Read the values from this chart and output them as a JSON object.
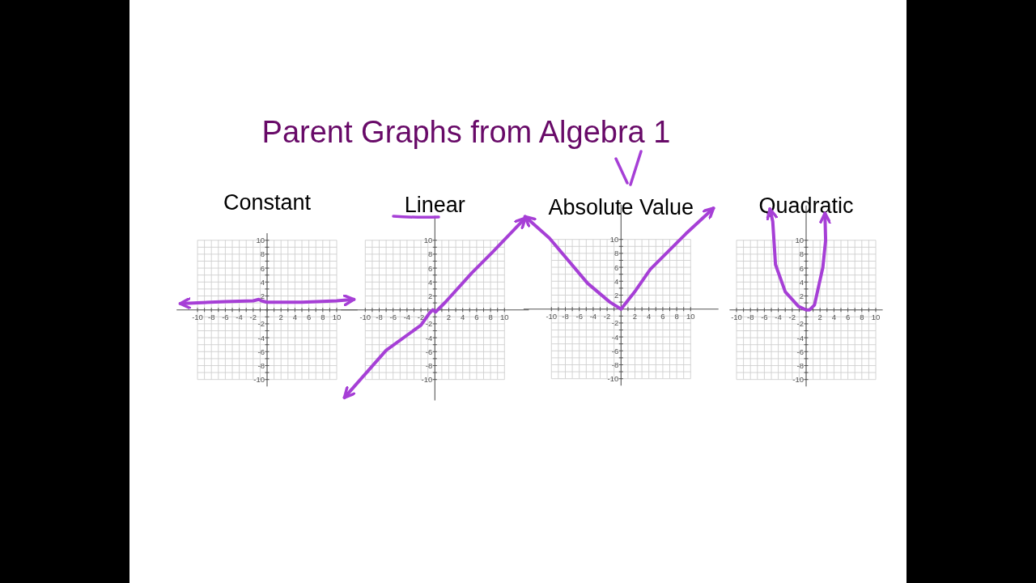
{
  "chart_data": [
    {
      "type": "other",
      "title": "Parent Graphs from Algebra 1"
    },
    {
      "type": "line",
      "title": "Constant",
      "color": "#a63fd6",
      "grid": true,
      "xlim": [
        -13,
        13
      ],
      "ylim": [
        -11,
        11
      ],
      "xticks": [
        -10,
        {
          "value": -9,
          "label": null
        },
        -8,
        {
          "value": -7,
          "label": null
        },
        -6,
        {
          "value": -5,
          "label": null
        },
        -4,
        {
          "value": -3,
          "label": null
        },
        -2,
        {
          "value": -1,
          "label": null
        },
        {
          "value": 0,
          "label": null
        },
        {
          "value": 1,
          "label": null
        },
        2,
        {
          "value": 3,
          "label": null
        },
        4,
        {
          "value": 5,
          "label": null
        },
        6,
        {
          "value": 7,
          "label": null
        },
        8,
        {
          "value": 9,
          "label": null
        },
        10
      ],
      "yticks": [
        -10,
        {
          "value": -9,
          "label": null
        },
        -8,
        {
          "value": -7,
          "label": null
        },
        -6,
        {
          "value": -5,
          "label": null
        },
        -4,
        {
          "value": -3,
          "label": null
        },
        -2,
        {
          "value": -1,
          "label": null
        },
        {
          "value": 0,
          "label": null
        },
        {
          "value": 1,
          "label": null
        },
        2,
        {
          "value": 3,
          "label": null
        },
        4,
        {
          "value": 5,
          "label": null
        },
        6,
        {
          "value": 7,
          "label": null
        },
        8,
        {
          "value": 9,
          "label": null
        },
        10
      ],
      "x": [
        -12.5,
        -10,
        -6,
        -2,
        -1.2,
        -0.8,
        0,
        5,
        10,
        12.5
      ],
      "values": [
        0.9,
        1,
        1.2,
        1.3,
        1.5,
        1.3,
        1.1,
        1.1,
        1.3,
        1.5
      ]
    },
    {
      "type": "line",
      "title": "Linear",
      "color": "#a63fd6",
      "grid": true,
      "xlim": [
        -13.5,
        13.5
      ],
      "ylim": [
        -13,
        13.5
      ],
      "xticks": [
        -10,
        {
          "value": -9,
          "label": null
        },
        -8,
        {
          "value": -7,
          "label": null
        },
        -6,
        {
          "value": -5,
          "label": null
        },
        -4,
        {
          "value": -3,
          "label": null
        },
        -2,
        {
          "value": -1,
          "label": null
        },
        {
          "value": 0,
          "label": null
        },
        {
          "value": 1,
          "label": null
        },
        2,
        {
          "value": 3,
          "label": null
        },
        4,
        {
          "value": 5,
          "label": null
        },
        6,
        {
          "value": 7,
          "label": null
        },
        8,
        {
          "value": 9,
          "label": null
        },
        10
      ],
      "yticks": [
        -10,
        {
          "value": -9,
          "label": null
        },
        -8,
        {
          "value": -7,
          "label": null
        },
        -6,
        {
          "value": -5,
          "label": null
        },
        -4,
        {
          "value": -3,
          "label": null
        },
        -2,
        {
          "value": -1,
          "label": null
        },
        {
          "value": 0,
          "label": null
        },
        {
          "value": 1,
          "label": null
        },
        2,
        {
          "value": 3,
          "label": null
        },
        4,
        {
          "value": 5,
          "label": null
        },
        6,
        {
          "value": 7,
          "label": null
        },
        8,
        {
          "value": 9,
          "label": null
        },
        10
      ],
      "x": [
        -13,
        -7,
        -2,
        -0.8,
        -0.3,
        0.1,
        1.5,
        5.3,
        8.4,
        13
      ],
      "values": [
        -12.6,
        -5.8,
        -2.2,
        -0.5,
        0,
        -0.3,
        1.1,
        5.3,
        8.4,
        13.2
      ]
    },
    {
      "type": "line",
      "title": "Absolute Value",
      "color": "#a63fd6",
      "grid": true,
      "xlim": [
        -14,
        14
      ],
      "ylim": [
        -11,
        15
      ],
      "xticks": [
        -10,
        {
          "value": -9,
          "label": null
        },
        -8,
        {
          "value": -7,
          "label": null
        },
        -6,
        {
          "value": -5,
          "label": null
        },
        -4,
        {
          "value": -3,
          "label": null
        },
        -2,
        {
          "value": -1,
          "label": null
        },
        {
          "value": 0,
          "label": null
        },
        {
          "value": 1,
          "label": null
        },
        2,
        {
          "value": 3,
          "label": null
        },
        4,
        {
          "value": 5,
          "label": null
        },
        6,
        {
          "value": 7,
          "label": null
        },
        8,
        {
          "value": 9,
          "label": null
        },
        10
      ],
      "yticks": [
        -10,
        {
          "value": -9,
          "label": null
        },
        -8,
        {
          "value": -7,
          "label": null
        },
        -6,
        {
          "value": -5,
          "label": null
        },
        -4,
        {
          "value": -3,
          "label": null
        },
        -2,
        {
          "value": -1,
          "label": null
        },
        {
          "value": 0,
          "label": null
        },
        {
          "value": 1,
          "label": null
        },
        2,
        {
          "value": 3,
          "label": null
        },
        4,
        {
          "value": 5,
          "label": null
        },
        6,
        {
          "value": 7,
          "label": null
        },
        8,
        {
          "value": 9,
          "label": null
        },
        10
      ],
      "x": [
        -13.8,
        -10.3,
        -4.8,
        -1.6,
        0,
        1.9,
        4.2,
        9.3,
        13.3
      ],
      "values": [
        13.3,
        10.2,
        3.7,
        1,
        0,
        2.4,
        5.7,
        10.8,
        14.5
      ]
    },
    {
      "type": "line",
      "title": "Quadratic",
      "color": "#a63fd6",
      "grid": true,
      "xlim": [
        -11,
        11
      ],
      "ylim": [
        -11,
        15
      ],
      "xticks": [
        -10,
        {
          "value": -9,
          "label": null
        },
        -8,
        {
          "value": -7,
          "label": null
        },
        -6,
        {
          "value": -5,
          "label": null
        },
        -4,
        {
          "value": -3,
          "label": null
        },
        -2,
        {
          "value": -1,
          "label": null
        },
        {
          "value": 0,
          "label": null
        },
        {
          "value": 1,
          "label": null
        },
        2,
        {
          "value": 3,
          "label": null
        },
        4,
        {
          "value": 5,
          "label": null
        },
        6,
        {
          "value": 7,
          "label": null
        },
        8,
        {
          "value": 9,
          "label": null
        },
        10
      ],
      "yticks": [
        -10,
        {
          "value": -9,
          "label": null
        },
        -8,
        {
          "value": -7,
          "label": null
        },
        -6,
        {
          "value": -5,
          "label": null
        },
        -4,
        {
          "value": -3,
          "label": null
        },
        -2,
        {
          "value": -1,
          "label": null
        },
        {
          "value": 0,
          "label": null
        },
        {
          "value": 1,
          "label": null
        },
        2,
        {
          "value": 3,
          "label": null
        },
        4,
        {
          "value": 5,
          "label": null
        },
        6,
        {
          "value": 7,
          "label": null
        },
        8,
        {
          "value": 9,
          "label": null
        },
        10
      ],
      "x": [
        -5.2,
        -4.8,
        -4.4,
        -3,
        -1.1,
        0,
        0.5,
        1.2,
        2.4,
        2.8,
        2.7
      ],
      "values": [
        14.5,
        12.7,
        6.5,
        2.6,
        0.5,
        0,
        0,
        0.7,
        6.1,
        10,
        13.9
      ]
    }
  ]
}
